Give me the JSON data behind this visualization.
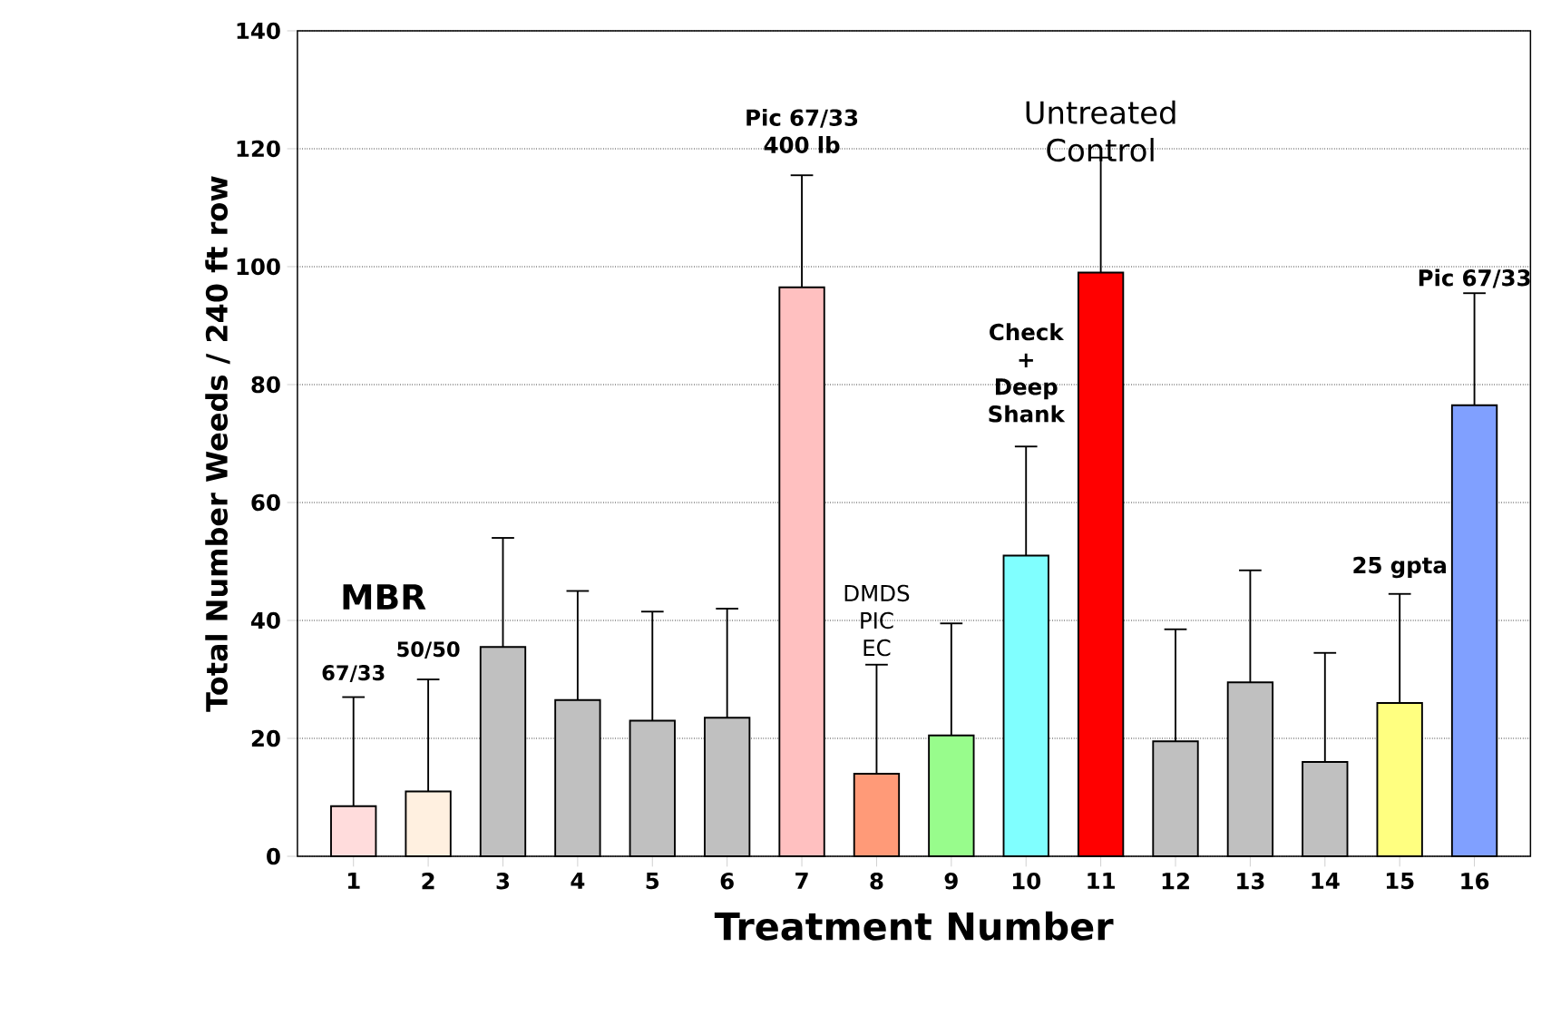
{
  "chart_data": {
    "type": "bar",
    "xlabel": "Treatment Number",
    "ylabel": "Total Number Weeds / 240 ft row",
    "categories": [
      "1",
      "2",
      "3",
      "4",
      "5",
      "6",
      "7",
      "8",
      "9",
      "10",
      "11",
      "12",
      "13",
      "14",
      "15",
      "16"
    ],
    "values": [
      8.5,
      11,
      35.5,
      26.5,
      23,
      23.5,
      96.5,
      14,
      20.5,
      51,
      99,
      19.5,
      29.5,
      16,
      26,
      76.5
    ],
    "errors": [
      [
        8.5,
        27
      ],
      [
        11,
        30
      ],
      [
        35.5,
        54
      ],
      [
        26.5,
        45
      ],
      [
        23,
        41.5
      ],
      [
        23.5,
        42
      ],
      [
        96.5,
        115.5
      ],
      [
        14,
        32.5
      ],
      [
        20.5,
        39.5
      ],
      [
        51,
        69.5
      ],
      [
        99,
        118.5
      ],
      [
        19.5,
        38.5
      ],
      [
        29.5,
        48.5
      ],
      [
        16,
        34.5
      ],
      [
        26,
        44.5
      ],
      [
        76.5,
        95.5
      ]
    ],
    "colors": [
      "#ffdcdc",
      "#fff0e0",
      "#c0c0c0",
      "#c0c0c0",
      "#c0c0c0",
      "#c0c0c0",
      "#ffc0c0",
      "#ff9a78",
      "#98fc8c",
      "#80ffff",
      "#ff0000",
      "#c0c0c0",
      "#c0c0c0",
      "#c0c0c0",
      "#ffff80",
      "#80a0ff"
    ],
    "ylim": [
      0,
      140
    ],
    "yticks": [
      0,
      20,
      40,
      60,
      80,
      100,
      120,
      140
    ],
    "grid": "y",
    "annotations": [
      "MBR",
      "67/33",
      "50/50",
      "Pic 67/33 400 lb",
      "DMDS PIC EC",
      "Check + Deep Shank",
      "Untreated Control",
      "Pic 67/33",
      "25 gpta"
    ]
  }
}
